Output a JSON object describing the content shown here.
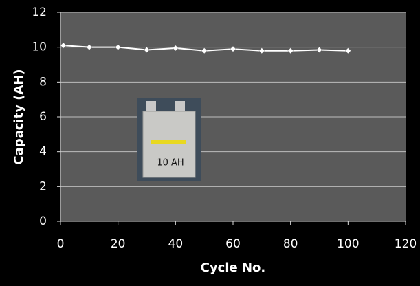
{
  "chart_data": {
    "type": "line",
    "xlabel": "Cycle No.",
    "ylabel": "Capacity (AH)",
    "annotations": [
      "10 AH"
    ],
    "x": [
      1,
      10,
      20,
      30,
      40,
      50,
      60,
      70,
      80,
      90,
      100
    ],
    "series": [
      {
        "name": null,
        "color": "#ffffff",
        "values": [
          10.1,
          10.0,
          10.0,
          9.85,
          9.95,
          9.8,
          9.9,
          9.8,
          9.8,
          9.85,
          9.8
        ]
      }
    ],
    "xlim": [
      0,
      120
    ],
    "xticks": [
      0,
      20,
      40,
      60,
      80,
      100,
      120
    ],
    "ylim": [
      0,
      12
    ],
    "yticks": [
      0,
      2,
      4,
      6,
      8,
      10,
      12
    ],
    "grid": true
  }
}
